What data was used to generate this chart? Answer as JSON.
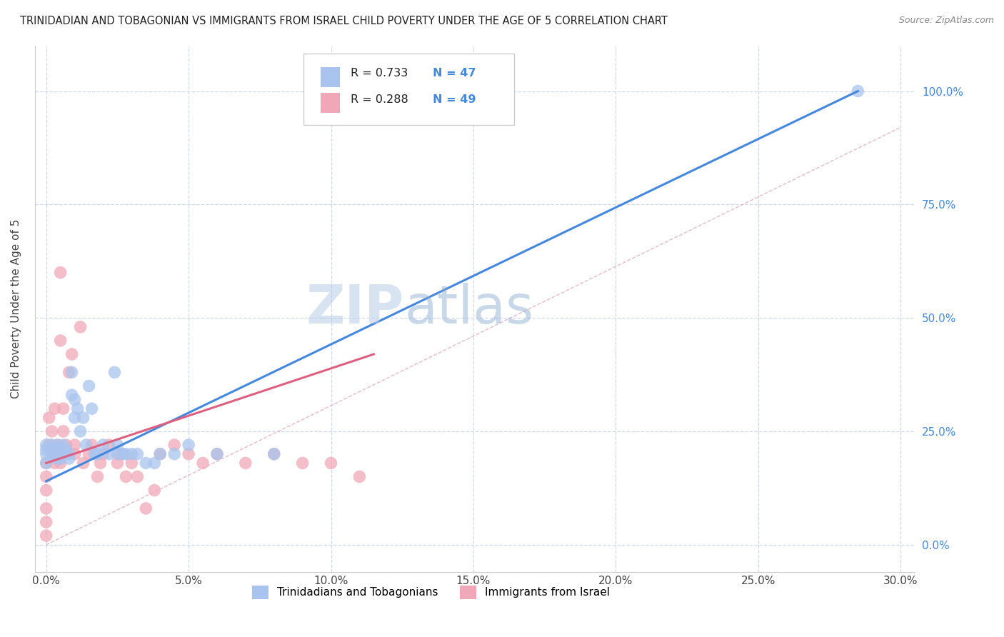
{
  "title": "TRINIDADIAN AND TOBAGONIAN VS IMMIGRANTS FROM ISRAEL CHILD POVERTY UNDER THE AGE OF 5 CORRELATION CHART",
  "source": "Source: ZipAtlas.com",
  "xlabel_ticks": [
    "0.0%",
    "",
    "5.0%",
    "",
    "10.0%",
    "",
    "15.0%",
    "",
    "20.0%",
    "",
    "25.0%",
    "",
    "30.0%"
  ],
  "xlabel_vals": [
    0.0,
    0.025,
    0.05,
    0.075,
    0.1,
    0.125,
    0.15,
    0.175,
    0.2,
    0.225,
    0.25,
    0.275,
    0.3
  ],
  "xlabel_show_ticks": [
    0.0,
    0.05,
    0.1,
    0.15,
    0.2,
    0.25,
    0.3
  ],
  "xlabel_show_labels": [
    "0.0%",
    "5.0%",
    "10.0%",
    "15.0%",
    "20.0%",
    "25.0%",
    "30.0%"
  ],
  "ylabel_vals": [
    0.0,
    0.25,
    0.5,
    0.75,
    1.0
  ],
  "ylabel_ticks": [
    "0.0%",
    "25.0%",
    "50.0%",
    "75.0%",
    "100.0%"
  ],
  "xlim": [
    -0.004,
    0.305
  ],
  "ylim": [
    -0.06,
    1.1
  ],
  "blue_R": 0.733,
  "blue_N": 47,
  "pink_R": 0.288,
  "pink_N": 49,
  "blue_color": "#a8c4ee",
  "blue_line_color": "#4488dd",
  "pink_color": "#f0a8b8",
  "pink_line_color": "#dd6080",
  "blue_scatter_x": [
    0.0,
    0.0,
    0.0,
    0.0,
    0.002,
    0.002,
    0.003,
    0.003,
    0.004,
    0.004,
    0.005,
    0.005,
    0.005,
    0.006,
    0.006,
    0.007,
    0.008,
    0.008,
    0.009,
    0.009,
    0.01,
    0.01,
    0.011,
    0.012,
    0.013,
    0.014,
    0.015,
    0.016,
    0.017,
    0.018,
    0.02,
    0.022,
    0.024,
    0.025,
    0.025,
    0.027,
    0.028,
    0.03,
    0.032,
    0.035,
    0.038,
    0.04,
    0.045,
    0.05,
    0.06,
    0.08,
    0.285
  ],
  "blue_scatter_y": [
    0.18,
    0.2,
    0.22,
    0.21,
    0.2,
    0.22,
    0.2,
    0.21,
    0.19,
    0.22,
    0.2,
    0.19,
    0.21,
    0.22,
    0.2,
    0.21,
    0.2,
    0.19,
    0.33,
    0.38,
    0.32,
    0.28,
    0.3,
    0.25,
    0.28,
    0.22,
    0.35,
    0.3,
    0.2,
    0.2,
    0.22,
    0.2,
    0.38,
    0.2,
    0.22,
    0.2,
    0.2,
    0.2,
    0.2,
    0.18,
    0.18,
    0.2,
    0.2,
    0.22,
    0.2,
    0.2,
    1.0
  ],
  "pink_scatter_x": [
    0.0,
    0.0,
    0.0,
    0.0,
    0.0,
    0.0,
    0.001,
    0.001,
    0.002,
    0.002,
    0.003,
    0.003,
    0.004,
    0.004,
    0.005,
    0.005,
    0.005,
    0.006,
    0.006,
    0.007,
    0.008,
    0.009,
    0.01,
    0.01,
    0.012,
    0.013,
    0.015,
    0.016,
    0.018,
    0.019,
    0.02,
    0.022,
    0.025,
    0.026,
    0.028,
    0.03,
    0.032,
    0.035,
    0.038,
    0.04,
    0.045,
    0.05,
    0.055,
    0.06,
    0.07,
    0.08,
    0.09,
    0.1,
    0.11
  ],
  "pink_scatter_y": [
    0.02,
    0.05,
    0.08,
    0.12,
    0.15,
    0.18,
    0.22,
    0.28,
    0.2,
    0.25,
    0.3,
    0.18,
    0.2,
    0.22,
    0.45,
    0.6,
    0.18,
    0.25,
    0.3,
    0.22,
    0.38,
    0.42,
    0.2,
    0.22,
    0.48,
    0.18,
    0.2,
    0.22,
    0.15,
    0.18,
    0.2,
    0.22,
    0.18,
    0.2,
    0.15,
    0.18,
    0.15,
    0.08,
    0.12,
    0.2,
    0.22,
    0.2,
    0.18,
    0.2,
    0.18,
    0.2,
    0.18,
    0.18,
    0.15
  ],
  "blue_trend_x": [
    0.0,
    0.285
  ],
  "blue_trend_y": [
    0.14,
    1.0
  ],
  "pink_trend_x": [
    0.0,
    0.115
  ],
  "pink_trend_y": [
    0.18,
    0.42
  ],
  "ref_line_x": [
    0.0,
    0.3
  ],
  "ref_line_y": [
    0.0,
    0.92
  ],
  "watermark_zip": "ZIP",
  "watermark_atlas": "atlas",
  "background_color": "#ffffff",
  "grid_color": "#d0d8e8",
  "legend_blue_label_r": "R = 0.733",
  "legend_blue_label_n": "N = 47",
  "legend_pink_label_r": "R = 0.288",
  "legend_pink_label_n": "N = 49",
  "bottom_legend_blue": "Trinidadians and Tobagonians",
  "bottom_legend_pink": "Immigrants from Israel",
  "ylabel": "Child Poverty Under the Age of 5"
}
